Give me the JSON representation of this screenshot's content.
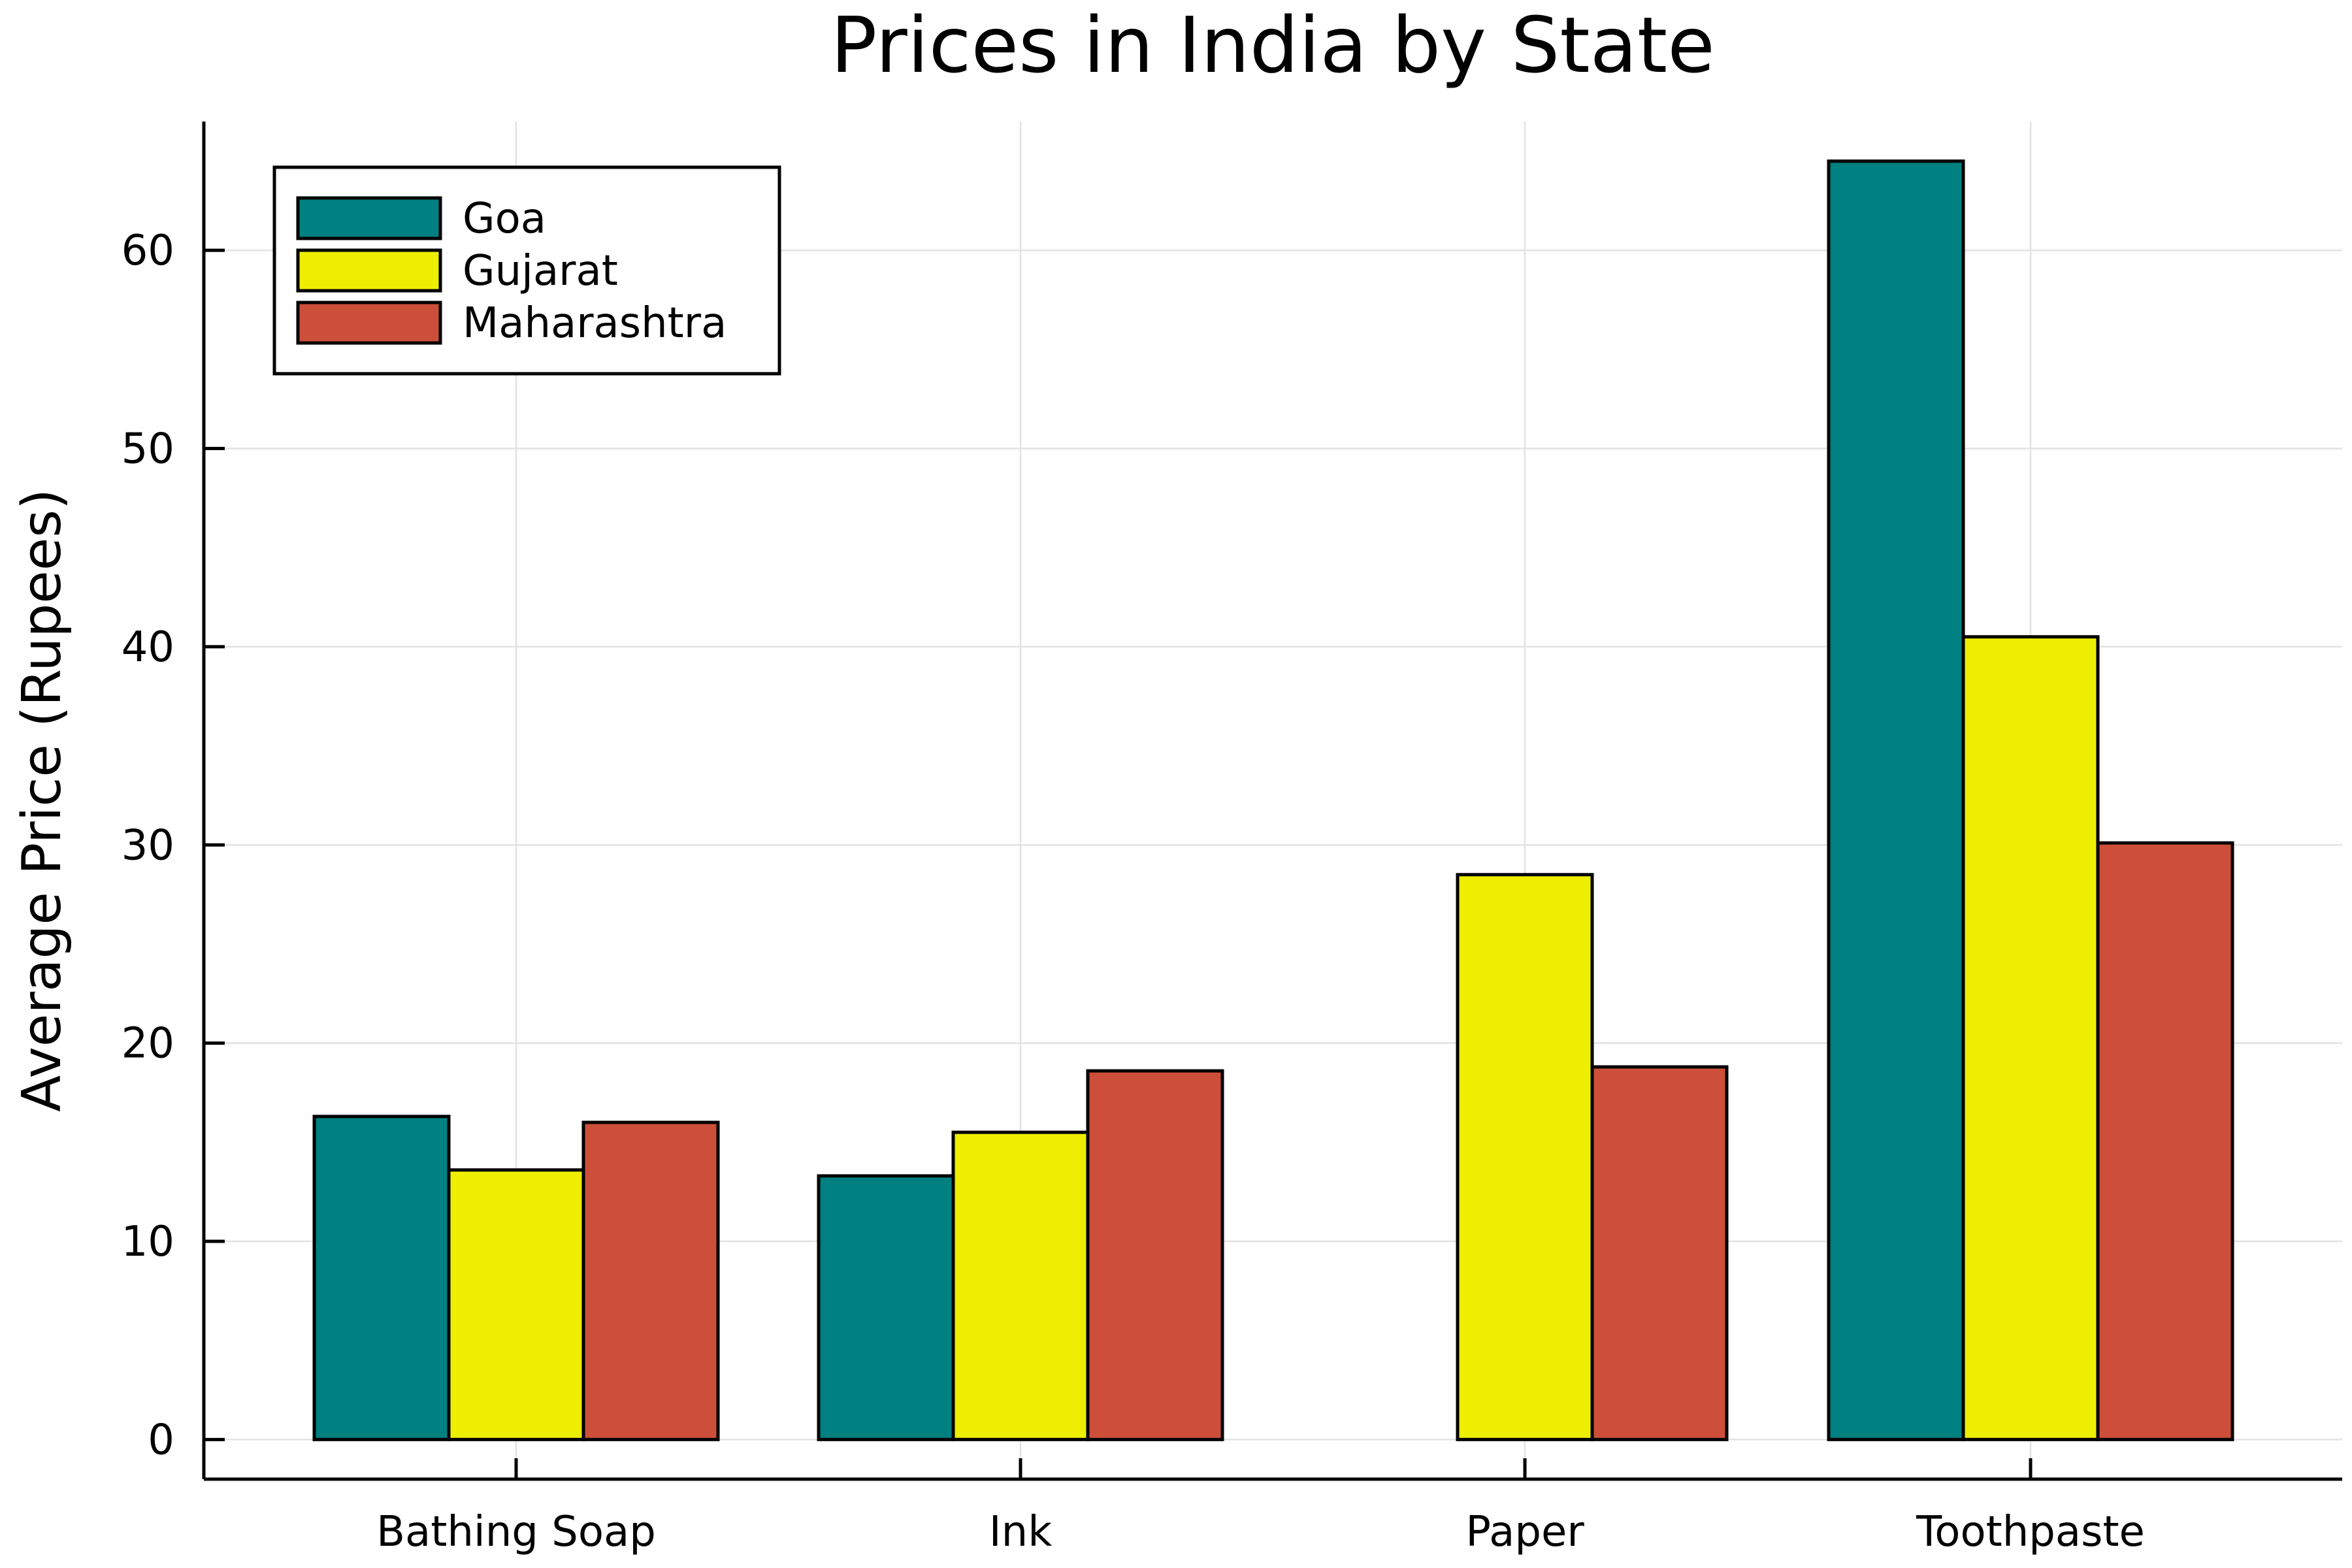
{
  "chart_data": {
    "type": "bar",
    "title": "Prices in India by State",
    "xlabel": "",
    "ylabel": "Average Price (Rupees)",
    "categories": [
      "Bathing Soap",
      "Ink",
      "Paper",
      "Toothpaste"
    ],
    "series": [
      {
        "name": "Goa",
        "color": "#008080",
        "values": [
          16.3,
          13.3,
          null,
          64.5
        ]
      },
      {
        "name": "Gujarat",
        "color": "#eeee00",
        "values": [
          13.6,
          15.5,
          28.5,
          40.5
        ]
      },
      {
        "name": "Maharashtra",
        "color": "#cd4f39",
        "values": [
          16.0,
          18.6,
          18.8,
          30.1
        ]
      }
    ],
    "yticks": [
      0,
      10,
      20,
      30,
      40,
      50,
      60
    ],
    "ylim": [
      -2,
      66.5
    ],
    "grid": true,
    "legend_position": "top-left"
  }
}
